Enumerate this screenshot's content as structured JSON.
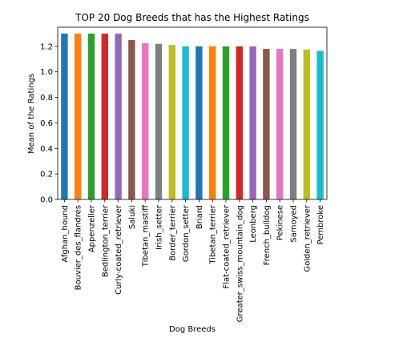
{
  "chart_data": {
    "type": "bar",
    "title": "TOP 20 Dog Breeds that has the Highest Ratings",
    "xlabel": "Dog Breeds",
    "ylabel": "Mean of the Ratings",
    "ylim": [
      0,
      1.35
    ],
    "yticks": [
      0.0,
      0.2,
      0.4,
      0.6,
      0.8,
      1.0,
      1.2
    ],
    "ytick_labels": [
      "0.0",
      "0.2",
      "0.4",
      "0.6",
      "0.8",
      "1.0",
      "1.2"
    ],
    "grid": false,
    "legend": "none",
    "categories": [
      "Afghan_hound",
      "Bouvier_des_flandres",
      "Appenzeller",
      "Bedlington_terrier",
      "Curly-coated_retriever",
      "Saluki",
      "Tibetan_mastiff",
      "Irish_setter",
      "Border_terrier",
      "Gordon_setter",
      "Briard",
      "Tibetan_terrier",
      "Flat-coated_retriever",
      "Greater_swiss_mountain_dog",
      "Leonberg",
      "French_bulldog",
      "Pekinese",
      "Samoyed",
      "Golden_retriever",
      "Pembroke"
    ],
    "values": [
      1.3,
      1.3,
      1.3,
      1.3,
      1.3,
      1.25,
      1.225,
      1.22,
      1.21,
      1.2,
      1.2,
      1.2,
      1.2,
      1.2,
      1.2,
      1.18,
      1.18,
      1.18,
      1.175,
      1.165
    ],
    "colors": [
      "#1f77b4",
      "#ff7f0e",
      "#2ca02c",
      "#d62728",
      "#9467bd",
      "#8c564b",
      "#e377c2",
      "#7f7f7f",
      "#bcbd22",
      "#17becf"
    ]
  }
}
